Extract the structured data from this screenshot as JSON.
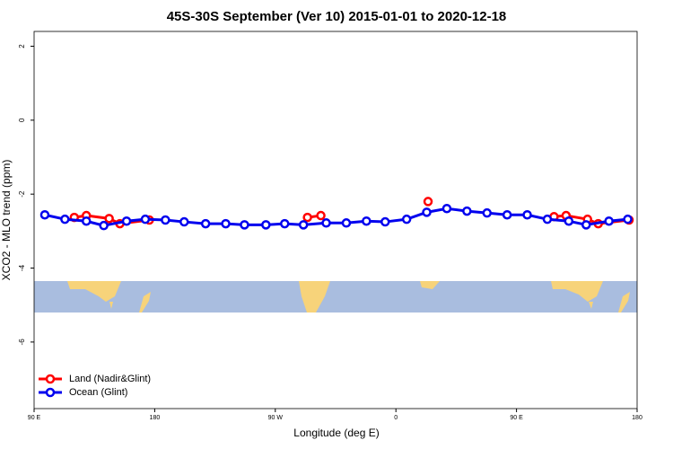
{
  "chart_data": {
    "type": "line",
    "title": "45S-30S September (Ver 10)   2015-01-01 to 2020-12-18",
    "x_label": "Longitude (deg E)",
    "y_label": "XCO2 - MLO trend (ppm)",
    "xlim": [
      90,
      540
    ],
    "ylim": [
      -7.8,
      2.4
    ],
    "xticks": [
      {
        "value": 90,
        "label": "90 E"
      },
      180,
      {
        "value": 270,
        "label": "90 W"
      },
      {
        "value": 360,
        "label": "0"
      },
      {
        "value": 450,
        "label": "90 E"
      },
      {
        "value": 540,
        "label": "180"
      }
    ],
    "yticks": [
      2,
      0,
      -2,
      -4,
      -6
    ],
    "legend": "bottom-left",
    "series": [
      {
        "name": "Land (Nadir&Glint)",
        "color": "#ff0000",
        "x": [
          120,
          129,
          146,
          154,
          176,
          294,
          304,
          384,
          478,
          487,
          503,
          511,
          534
        ],
        "values": [
          -2.63,
          -2.58,
          -2.66,
          -2.8,
          -2.7,
          -2.63,
          -2.58,
          -2.2,
          -2.61,
          -2.58,
          -2.68,
          -2.8,
          -2.7
        ]
      },
      {
        "name": "Ocean (Glint)",
        "color": "#0000ee",
        "x": [
          98,
          113,
          129,
          142,
          159,
          173,
          188,
          202,
          218,
          233,
          247,
          263,
          277,
          291,
          308,
          323,
          338,
          352,
          368,
          383,
          398,
          413,
          428,
          443,
          458,
          473,
          489,
          502,
          519,
          533
        ],
        "values": [
          -2.56,
          -2.68,
          -2.73,
          -2.85,
          -2.73,
          -2.68,
          -2.7,
          -2.75,
          -2.8,
          -2.8,
          -2.83,
          -2.83,
          -2.8,
          -2.83,
          -2.78,
          -2.78,
          -2.73,
          -2.75,
          -2.68,
          -2.49,
          -2.39,
          -2.46,
          -2.51,
          -2.56,
          -2.56,
          -2.68,
          -2.73,
          -2.83,
          -2.73,
          -2.68
        ]
      }
    ]
  }
}
